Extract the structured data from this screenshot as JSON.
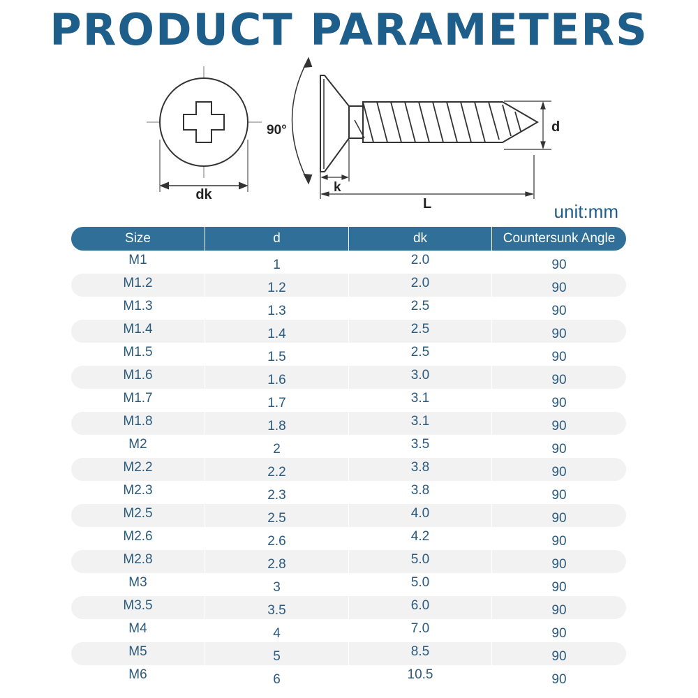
{
  "title": "PRODUCT PARAMETERS",
  "diagram": {
    "label_dk": "dk",
    "label_k": "k",
    "label_l": "L",
    "label_d": "d",
    "label_angle": "90°"
  },
  "unit": "unit:mm",
  "table": {
    "headers": [
      "Size",
      "d",
      "dk",
      "Countersunk Angle"
    ],
    "rows": [
      [
        "M1",
        "1",
        "2.0",
        "90"
      ],
      [
        "M1.2",
        "1.2",
        "2.0",
        "90"
      ],
      [
        "M1.3",
        "1.3",
        "2.5",
        "90"
      ],
      [
        "M1.4",
        "1.4",
        "2.5",
        "90"
      ],
      [
        "M1.5",
        "1.5",
        "2.5",
        "90"
      ],
      [
        "M1.6",
        "1.6",
        "3.0",
        "90"
      ],
      [
        "M1.7",
        "1.7",
        "3.1",
        "90"
      ],
      [
        "M1.8",
        "1.8",
        "3.1",
        "90"
      ],
      [
        "M2",
        "2",
        "3.5",
        "90"
      ],
      [
        "M2.2",
        "2.2",
        "3.8",
        "90"
      ],
      [
        "M2.3",
        "2.3",
        "3.8",
        "90"
      ],
      [
        "M2.5",
        "2.5",
        "4.0",
        "90"
      ],
      [
        "M2.6",
        "2.6",
        "4.2",
        "90"
      ],
      [
        "M2.8",
        "2.8",
        "5.0",
        "90"
      ],
      [
        "M3",
        "3",
        "5.0",
        "90"
      ],
      [
        "M3.5",
        "3.5",
        "6.0",
        "90"
      ],
      [
        "M4",
        "4",
        "7.0",
        "90"
      ],
      [
        "M5",
        "5",
        "8.5",
        "90"
      ],
      [
        "M6",
        "6",
        "10.5",
        "90"
      ]
    ]
  },
  "colors": {
    "accent": "#1e5e8a",
    "header_bg": "#2f6f98",
    "stripe": "#f2f2f2",
    "cell_text": "#2a5a7e"
  }
}
